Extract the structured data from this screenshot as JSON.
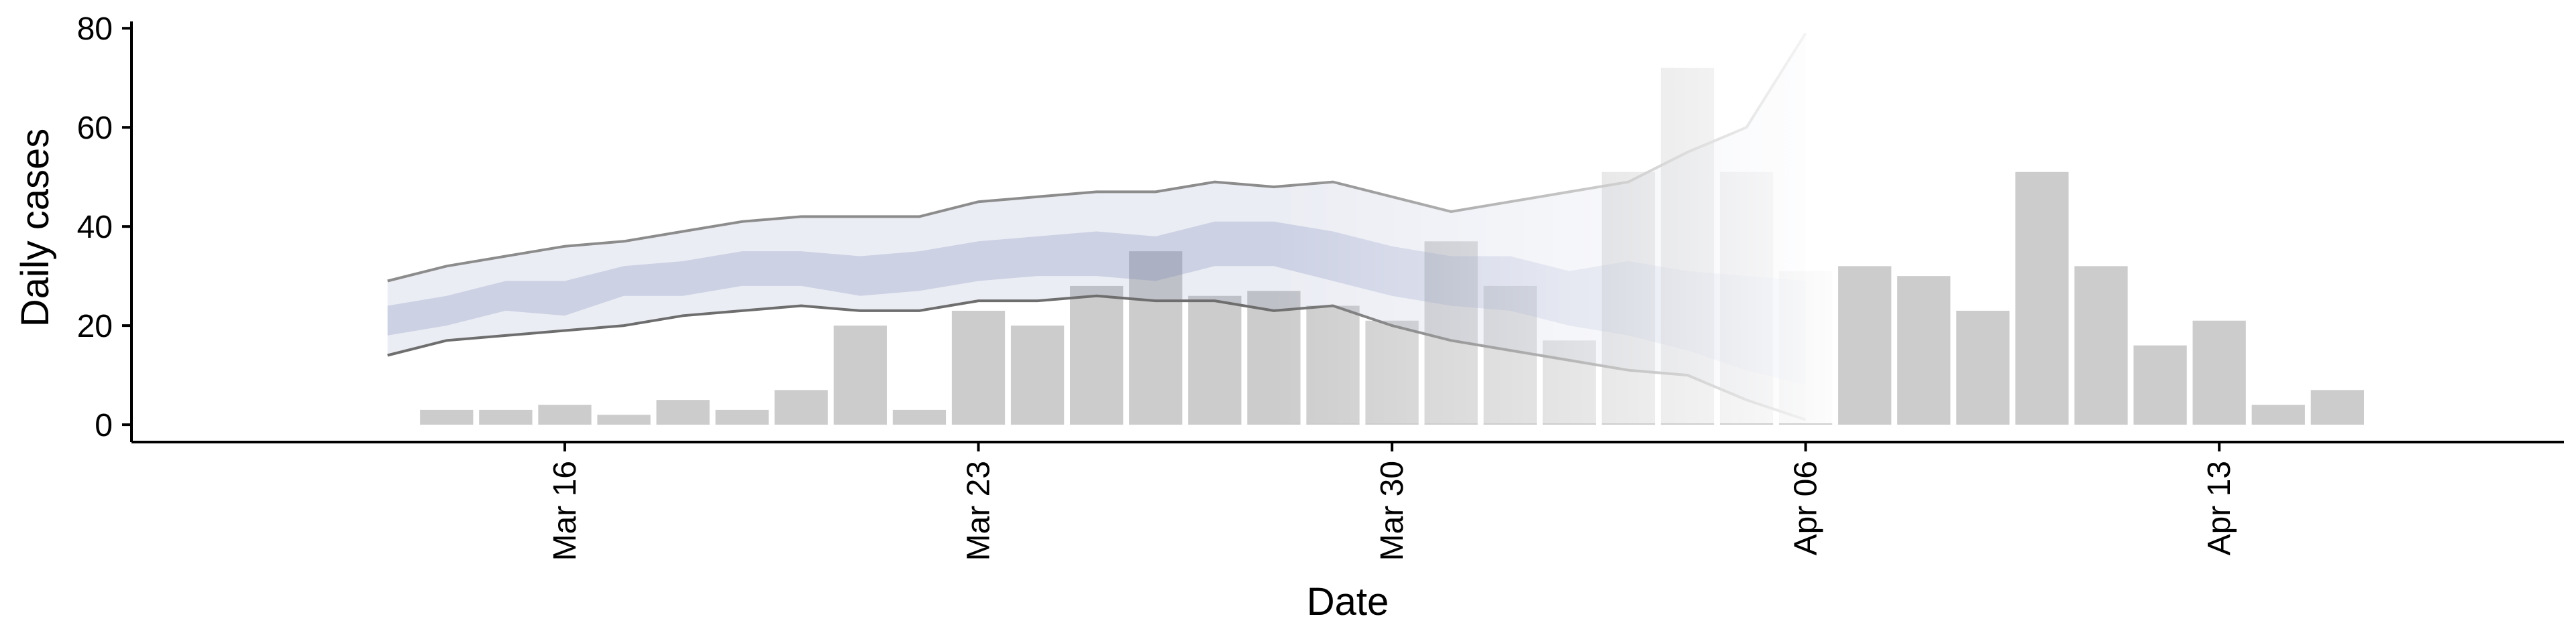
{
  "chart_data": {
    "type": "bar",
    "xlabel": "Date",
    "ylabel": "Daily cases",
    "ylim": [
      -3.5,
      83
    ],
    "xlim": [
      "2020-03-08T16:00",
      "2020-04-18T20:00"
    ],
    "yticks": [
      0,
      20,
      40,
      60,
      80
    ],
    "xticks": [
      {
        "date": "2020-03-16",
        "label": "Mar 16"
      },
      {
        "date": "2020-03-23",
        "label": "Mar 23"
      },
      {
        "date": "2020-03-30",
        "label": "Mar 30"
      },
      {
        "date": "2020-04-06",
        "label": "Apr 06"
      },
      {
        "date": "2020-04-13",
        "label": "Apr 13"
      }
    ],
    "grid": false,
    "legend": "none",
    "bars": {
      "color": "#cccccc",
      "dates": [
        "2020-03-14",
        "2020-03-15",
        "2020-03-16",
        "2020-03-17",
        "2020-03-18",
        "2020-03-19",
        "2020-03-20",
        "2020-03-21",
        "2020-03-22",
        "2020-03-23",
        "2020-03-24",
        "2020-03-25",
        "2020-03-26",
        "2020-03-27",
        "2020-03-28",
        "2020-03-29",
        "2020-03-30",
        "2020-03-31",
        "2020-04-01",
        "2020-04-02",
        "2020-04-03",
        "2020-04-04",
        "2020-04-05",
        "2020-04-06",
        "2020-04-07",
        "2020-04-08",
        "2020-04-09",
        "2020-04-10",
        "2020-04-11",
        "2020-04-12",
        "2020-04-13",
        "2020-04-14",
        "2020-04-15"
      ],
      "values": [
        3,
        3,
        4,
        2,
        5,
        3,
        7,
        20,
        3,
        23,
        20,
        28,
        35,
        26,
        27,
        24,
        21,
        37,
        28,
        17,
        51,
        72,
        51,
        31,
        32,
        30,
        23,
        51,
        32,
        16,
        21,
        4,
        7
      ]
    },
    "estimate": {
      "dates": [
        "2020-03-13",
        "2020-03-14",
        "2020-03-15",
        "2020-03-16",
        "2020-03-17",
        "2020-03-18",
        "2020-03-19",
        "2020-03-20",
        "2020-03-21",
        "2020-03-22",
        "2020-03-23",
        "2020-03-24",
        "2020-03-25",
        "2020-03-26",
        "2020-03-27",
        "2020-03-28",
        "2020-03-29",
        "2020-03-30",
        "2020-03-31",
        "2020-04-01",
        "2020-04-02",
        "2020-04-03",
        "2020-04-04",
        "2020-04-05",
        "2020-04-06"
      ],
      "band_color": "#7382b4",
      "outer_upper": [
        29,
        32,
        34,
        36,
        37,
        39,
        41,
        42,
        42,
        42,
        45,
        46,
        47,
        47,
        49,
        48,
        49,
        46,
        43,
        45,
        47,
        49,
        55,
        60,
        79
      ],
      "outer_lower": [
        14,
        17,
        18,
        19,
        20,
        22,
        23,
        24,
        23,
        23,
        25,
        25,
        26,
        25,
        25,
        23,
        24,
        20,
        17,
        15,
        13,
        11,
        10,
        5,
        1
      ],
      "inner_upper": [
        24,
        26,
        29,
        29,
        32,
        33,
        35,
        35,
        34,
        35,
        37,
        38,
        39,
        38,
        41,
        41,
        39,
        36,
        34,
        34,
        31,
        33,
        31,
        30,
        29
      ],
      "inner_lower": [
        18,
        20,
        23,
        22,
        26,
        26,
        28,
        28,
        26,
        27,
        29,
        30,
        30,
        29,
        32,
        32,
        29,
        26,
        24,
        23,
        20,
        18,
        15,
        11,
        8
      ],
      "fade_start": "2020-03-28",
      "fade_end": "2020-04-06"
    }
  }
}
